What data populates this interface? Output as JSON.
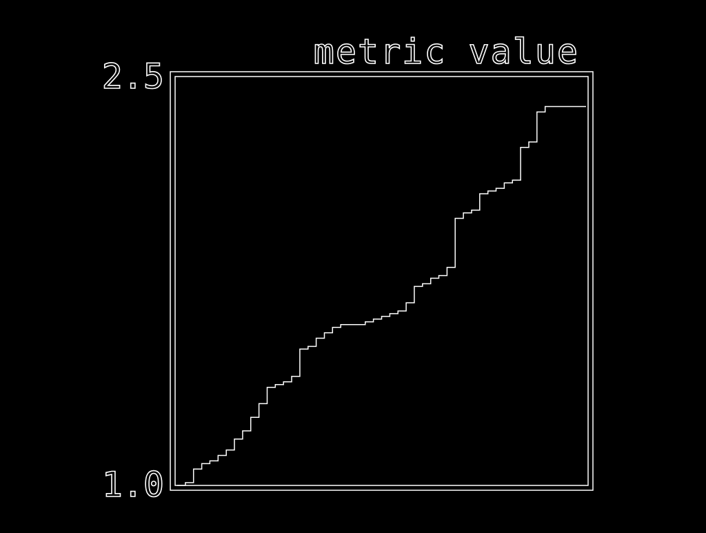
{
  "colors": {
    "background": "#000000",
    "foreground": "#ffffff"
  },
  "chart_data": {
    "type": "line",
    "style": "step",
    "title": "metric value",
    "xlabel": "",
    "ylabel": "",
    "ylim": [
      1.0,
      2.5
    ],
    "xlim": [
      0,
      50
    ],
    "grid": false,
    "legend": "none",
    "yticks": [
      "1.0",
      "2.5"
    ],
    "series": [
      {
        "values": [
          1.0,
          1.01,
          1.06,
          1.08,
          1.09,
          1.11,
          1.13,
          1.17,
          1.2,
          1.25,
          1.3,
          1.36,
          1.37,
          1.38,
          1.4,
          1.5,
          1.51,
          1.54,
          1.56,
          1.58,
          1.59,
          1.59,
          1.59,
          1.6,
          1.61,
          1.62,
          1.63,
          1.64,
          1.67,
          1.73,
          1.74,
          1.76,
          1.77,
          1.8,
          1.98,
          2.0,
          2.01,
          2.07,
          2.08,
          2.09,
          2.11,
          2.12,
          2.24,
          2.26,
          2.37,
          2.39,
          2.39,
          2.39,
          2.39,
          2.39
        ]
      }
    ]
  }
}
